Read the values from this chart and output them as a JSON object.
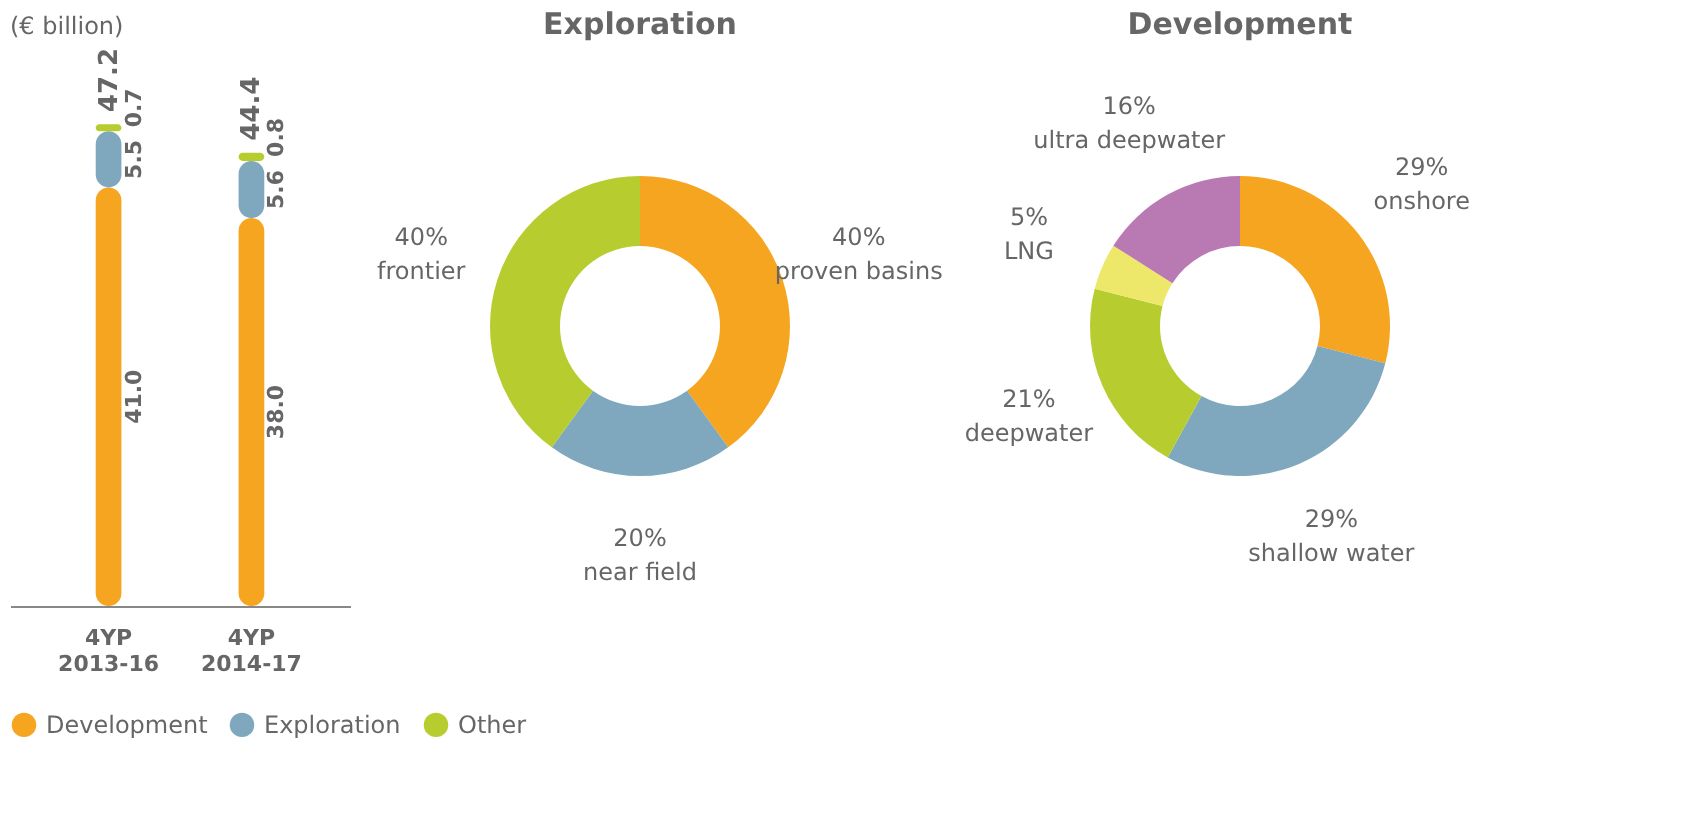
{
  "chart_data": [
    {
      "type": "bar",
      "ylabel": "(€ billion)",
      "categories": [
        "4YP 2013-16",
        "4YP 2014-17"
      ],
      "stacked": true,
      "legend": "bottom",
      "totals": [
        "47.2",
        "44.4"
      ],
      "series": [
        {
          "name": "Development",
          "color": "#f5a51f",
          "values": [
            41.0,
            38.0
          ],
          "value_labels": [
            "41.0",
            "38.0"
          ]
        },
        {
          "name": "Exploration",
          "color": "#7fa8be",
          "values": [
            5.5,
            5.6
          ],
          "value_labels": [
            "5.5",
            "5.6"
          ]
        },
        {
          "name": "Other",
          "color": "#b7cd2f",
          "values": [
            0.7,
            0.8
          ],
          "value_labels": [
            "0.7",
            "0.8"
          ]
        }
      ]
    },
    {
      "type": "donut",
      "title": "Exploration",
      "categories": [
        "proven basins",
        "near field",
        "frontier"
      ],
      "values": [
        40,
        20,
        40
      ],
      "colors": [
        "#f5a51f",
        "#7fa8be",
        "#b7cd2f"
      ],
      "value_labels": [
        "40%",
        "20%",
        "40%"
      ]
    },
    {
      "type": "donut",
      "title": "Development",
      "categories": [
        "onshore",
        "shallow water",
        "deepwater",
        "LNG",
        "ultra deepwater"
      ],
      "values": [
        29,
        29,
        21,
        5,
        16
      ],
      "colors": [
        "#f5a51f",
        "#7fa8be",
        "#b7cd2f",
        "#eee86a",
        "#b97ab4"
      ],
      "value_labels": [
        "29%",
        "29%",
        "21%",
        "5%",
        "16%"
      ]
    }
  ]
}
